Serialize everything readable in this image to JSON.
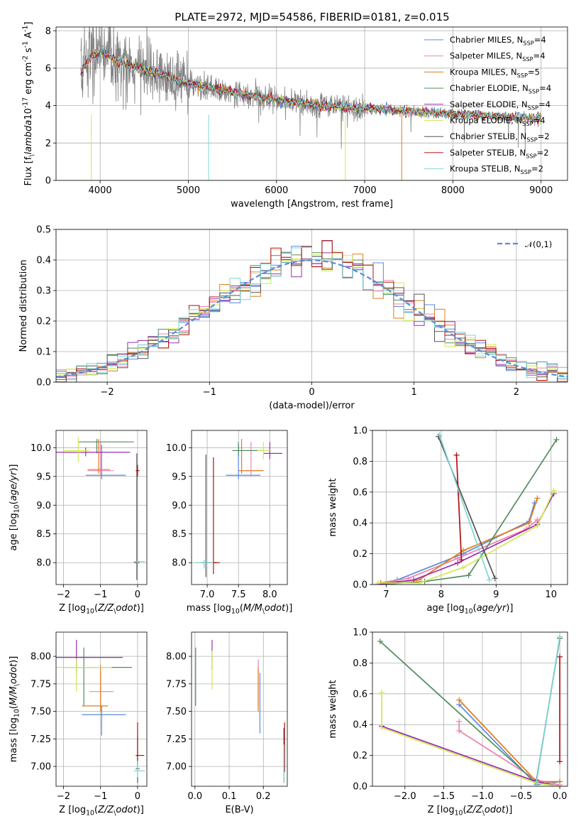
{
  "figure": {
    "title": "PLATE=2972, MJD=54586, FIBERID=0181, z=0.015",
    "series": [
      {
        "name": "Chabrier MILES, N$_{SSP}$=4",
        "color": "#5a8ae0"
      },
      {
        "name": "Salpeter MILES, N$_{SSP}$=4",
        "color": "#ee82b0"
      },
      {
        "name": "Kroupa MILES, N$_{SSP}$=5",
        "color": "#e07c1a"
      },
      {
        "name": "Chabrier ELODIE, N$_{SSP}$=4",
        "color": "#548c5e"
      },
      {
        "name": "Salpeter ELODIE, N$_{SSP}$=4",
        "color": "#9a2eb0"
      },
      {
        "name": "Kroupa ELODIE, N$_{SSP}$=4",
        "color": "#d0ea50"
      },
      {
        "name": "Chabrier STELIB, N$_{SSP}$=2",
        "color": "#555555"
      },
      {
        "name": "Salpeter STELIB, N$_{SSP}$=2",
        "color": "#b01010"
      },
      {
        "name": "Kroupa STELIB, N$_{SSP}$=2",
        "color": "#7ed6d6"
      }
    ],
    "observed_color": "#808080"
  },
  "chart_data": [
    {
      "id": "spectrum",
      "type": "line",
      "xlabel": "wavelength [Angstrom, rest frame]",
      "ylabel": "Flux [f$_\\lambda$10$^{-17}$ erg cm$^{-2}$ s$^{-1}$ A$^{-1}$]",
      "xlim": [
        3500,
        9300
      ],
      "ylim": [
        0,
        8.2
      ],
      "xticks": [
        4000,
        5000,
        6000,
        7000,
        8000,
        9000
      ],
      "yticks": [
        0,
        2,
        4,
        6,
        8
      ],
      "legend": "upper right",
      "continuum": {
        "x": [
          3780,
          3900,
          4000,
          4200,
          4500,
          5000,
          5500,
          6000,
          6500,
          7000,
          7500,
          8000,
          8500,
          9000
        ],
        "y": [
          5.8,
          6.6,
          6.9,
          6.4,
          5.9,
          5.2,
          4.7,
          4.3,
          4.0,
          3.85,
          3.7,
          3.55,
          3.42,
          3.3
        ]
      },
      "observed_noise": 0.35,
      "model_dropouts": [
        [
          3900,
          0
        ],
        [
          5230,
          0
        ],
        [
          6780,
          0
        ],
        [
          7420,
          0
        ]
      ]
    },
    {
      "id": "residuals",
      "type": "line",
      "xlabel": "(data-model)/error",
      "ylabel": "Normed distribution",
      "xlim": [
        -2.5,
        2.5
      ],
      "ylim": [
        0,
        0.5
      ],
      "xticks": [
        -2,
        -1,
        0,
        1,
        2
      ],
      "yticks": [
        0.0,
        0.1,
        0.2,
        0.3,
        0.4,
        0.5
      ],
      "legend_label": "$\\mathcal{N}(0,1)$",
      "legend": "upper right",
      "bin_width": 0.1,
      "histogram_scatter": 0.035
    },
    {
      "id": "z_age",
      "type": "scatter",
      "xlabel": "Z [log$_{10}$($Z/Z_\\odot$)]",
      "ylabel": "age  [log$_{10}$($age/yr$)]",
      "xlim": [
        -2.2,
        0.25
      ],
      "ylim": [
        7.62,
        10.3
      ],
      "xticks": [
        -2,
        -1,
        0
      ],
      "yticks": [
        8.0,
        8.5,
        9.0,
        9.5,
        10.0
      ],
      "points": [
        {
          "s": 0,
          "x": -0.97,
          "y": 9.52,
          "ex": [
            -1.4,
            -0.32
          ],
          "ey": [
            9.45,
            10.05
          ]
        },
        {
          "s": 1,
          "x": -1.0,
          "y": 9.6,
          "ex": [
            -1.35,
            -0.65
          ],
          "ey": [
            9.5,
            10.1
          ]
        },
        {
          "s": 2,
          "x": -1.05,
          "y": 9.62,
          "ex": [
            -1.35,
            -0.75
          ],
          "ey": [
            9.55,
            10.15
          ]
        },
        {
          "s": 3,
          "x": -1.1,
          "y": 10.1,
          "ex": [
            -1.6,
            -0.1
          ],
          "ey": [
            9.9,
            10.15
          ]
        },
        {
          "s": 4,
          "x": -1.4,
          "y": 9.92,
          "ex": [
            -2.3,
            -0.2
          ],
          "ey": [
            9.85,
            10.0
          ]
        },
        {
          "s": 5,
          "x": -1.6,
          "y": 9.95,
          "ex": [
            -2.0,
            -1.3
          ],
          "ey": [
            9.75,
            10.18
          ]
        },
        {
          "s": 6,
          "x": -0.02,
          "y": 8.0,
          "ex": [
            -0.1,
            0.05
          ],
          "ey": [
            7.7,
            9.9
          ]
        },
        {
          "s": 7,
          "x": 0.0,
          "y": 9.6,
          "ex": [
            -0.05,
            0.05
          ],
          "ey": [
            9.5,
            9.7
          ]
        },
        {
          "s": 8,
          "x": 0.0,
          "y": 8.02,
          "ex": [
            -0.1,
            0.2
          ],
          "ey": [
            7.97,
            8.05
          ]
        }
      ]
    },
    {
      "id": "mass_age",
      "type": "scatter",
      "xlabel": "mass [log$_{10}$($M/M_\\odot$)]",
      "ylabel": "",
      "xlim": [
        6.75,
        8.28
      ],
      "ylim": [
        7.62,
        10.3
      ],
      "xticks": [
        7.0,
        7.5,
        8.0
      ],
      "yticks": [
        8.0,
        8.5,
        9.0,
        9.5,
        10.0
      ],
      "points": [
        {
          "s": 0,
          "x": 7.5,
          "y": 9.52,
          "ex": [
            7.3,
            7.85
          ],
          "ey": [
            9.45,
            10.05
          ]
        },
        {
          "s": 1,
          "x": 7.7,
          "y": 9.6,
          "ex": [
            7.5,
            7.9
          ],
          "ey": [
            9.5,
            10.1
          ]
        },
        {
          "s": 2,
          "x": 7.55,
          "y": 9.6,
          "ex": [
            7.5,
            7.9
          ],
          "ey": [
            9.55,
            10.15
          ]
        },
        {
          "s": 3,
          "x": 7.5,
          "y": 9.95,
          "ex": [
            7.4,
            7.9
          ],
          "ey": [
            9.85,
            10.1
          ]
        },
        {
          "s": 4,
          "x": 8.0,
          "y": 9.9,
          "ex": [
            7.9,
            8.2
          ],
          "ey": [
            9.8,
            10.1
          ]
        },
        {
          "s": 5,
          "x": 7.9,
          "y": 9.95,
          "ex": [
            7.8,
            8.0
          ],
          "ey": [
            9.8,
            10.1
          ]
        },
        {
          "s": 6,
          "x": 6.98,
          "y": 8.0,
          "ex": [
            6.9,
            7.15
          ],
          "ey": [
            7.75,
            9.88
          ]
        },
        {
          "s": 7,
          "x": 7.1,
          "y": 8.0,
          "ex": [
            7.0,
            7.2
          ],
          "ey": [
            7.8,
            9.83
          ]
        },
        {
          "s": 8,
          "x": 6.95,
          "y": 8.0,
          "ex": [
            6.8,
            7.1
          ],
          "ey": [
            7.9,
            8.05
          ]
        }
      ]
    },
    {
      "id": "age_weight",
      "type": "line",
      "xlabel": "age  [log$_{10}$($age/yr$)]",
      "ylabel": "mass weight",
      "xlim": [
        6.75,
        10.3
      ],
      "ylim": [
        0,
        1.0
      ],
      "xticks": [
        7,
        8,
        9,
        10
      ],
      "yticks": [
        0.0,
        0.2,
        0.4,
        0.6,
        0.8,
        1.0
      ],
      "lines": [
        {
          "s": 0,
          "x": [
            6.9,
            7.2,
            8.4,
            9.6,
            9.7
          ],
          "y": [
            0.01,
            0.03,
            0.2,
            0.41,
            0.53
          ]
        },
        {
          "s": 1,
          "x": [
            6.9,
            7.4,
            8.3,
            9.55,
            9.75
          ],
          "y": [
            0.01,
            0.04,
            0.17,
            0.36,
            0.42
          ]
        },
        {
          "s": 2,
          "x": [
            6.9,
            7.6,
            8.4,
            9.6,
            9.75
          ],
          "y": [
            0.01,
            0.03,
            0.22,
            0.4,
            0.56
          ]
        },
        {
          "s": 3,
          "x": [
            6.85,
            7.7,
            8.5,
            10.1
          ],
          "y": [
            0.0,
            0.02,
            0.06,
            0.94
          ]
        },
        {
          "s": 4,
          "x": [
            6.85,
            7.5,
            8.3,
            9.75,
            10.05
          ],
          "y": [
            0.0,
            0.03,
            0.14,
            0.39,
            0.59
          ]
        },
        {
          "s": 5,
          "x": [
            6.85,
            7.6,
            8.4,
            9.75,
            10.05
          ],
          "y": [
            0.01,
            0.01,
            0.11,
            0.38,
            0.61
          ]
        },
        {
          "s": 6,
          "x": [
            7.95,
            8.98
          ],
          "y": [
            0.96,
            0.04
          ]
        },
        {
          "s": 7,
          "x": [
            8.28,
            8.37
          ],
          "y": [
            0.84,
            0.16
          ]
        },
        {
          "s": 8,
          "x": [
            7.97,
            8.88
          ],
          "y": [
            0.97,
            0.03
          ]
        }
      ]
    },
    {
      "id": "z_mass",
      "type": "scatter",
      "xlabel": "Z [log$_{10}$($Z/Z_\\odot$)]",
      "ylabel": "mass [log$_{10}$($M/M_\\odot$)]",
      "xlim": [
        -2.2,
        0.25
      ],
      "ylim": [
        6.82,
        8.22
      ],
      "xticks": [
        -2,
        -1,
        0
      ],
      "yticks": [
        7.0,
        7.25,
        7.5,
        7.75,
        8.0
      ],
      "points": [
        {
          "s": 0,
          "x": -0.97,
          "y": 7.47,
          "ex": [
            -1.5,
            -0.32
          ],
          "ey": [
            7.28,
            7.55
          ]
        },
        {
          "s": 1,
          "x": -1.0,
          "y": 7.68,
          "ex": [
            -1.3,
            -0.65
          ],
          "ey": [
            7.55,
            7.85
          ]
        },
        {
          "s": 2,
          "x": -1.0,
          "y": 7.55,
          "ex": [
            -1.5,
            -0.8
          ],
          "ey": [
            7.5,
            7.92
          ]
        },
        {
          "s": 3,
          "x": -1.45,
          "y": 7.9,
          "ex": [
            -2.0,
            -0.15
          ],
          "ey": [
            7.55,
            8.08
          ]
        },
        {
          "s": 4,
          "x": -1.65,
          "y": 7.99,
          "ex": [
            -2.2,
            -0.4
          ],
          "ey": [
            7.85,
            8.15
          ]
        },
        {
          "s": 5,
          "x": -1.65,
          "y": 7.9,
          "ex": [
            -2.2,
            -0.7
          ],
          "ey": [
            7.68,
            7.98
          ]
        },
        {
          "s": 6,
          "x": 0.0,
          "y": 6.98,
          "ex": [
            -0.05,
            0.05
          ],
          "ey": [
            6.85,
            7.27
          ]
        },
        {
          "s": 7,
          "x": 0.0,
          "y": 7.1,
          "ex": [
            -0.05,
            0.18
          ],
          "ey": [
            7.0,
            7.4
          ]
        },
        {
          "s": 8,
          "x": 0.0,
          "y": 6.96,
          "ex": [
            -0.1,
            0.2
          ],
          "ey": [
            6.9,
            7.05
          ]
        }
      ]
    },
    {
      "id": "ebv_mass",
      "type": "scatter",
      "xlabel": "E(B-V)",
      "ylabel": "",
      "xlim": [
        -0.01,
        0.27
      ],
      "ylim": [
        6.82,
        8.22
      ],
      "xticks": [
        0.0,
        0.1,
        0.2
      ],
      "yticks": [
        7.0,
        7.25,
        7.5,
        7.75,
        8.0
      ],
      "points": [
        {
          "s": 0,
          "x": 0.19,
          "y": 7.6,
          "ey": [
            7.3,
            7.85
          ]
        },
        {
          "s": 1,
          "x": 0.185,
          "y": 7.7,
          "ey": [
            7.55,
            7.97
          ]
        },
        {
          "s": 2,
          "x": 0.185,
          "y": 7.65,
          "ey": [
            7.5,
            7.9
          ]
        },
        {
          "s": 3,
          "x": 0.002,
          "y": 7.75,
          "ey": [
            7.55,
            8.08
          ]
        },
        {
          "s": 4,
          "x": 0.05,
          "y": 8.0,
          "ey": [
            7.88,
            8.15
          ]
        },
        {
          "s": 5,
          "x": 0.05,
          "y": 7.9,
          "ey": [
            7.7,
            8.05
          ]
        },
        {
          "s": 6,
          "x": 0.26,
          "y": 7.05,
          "ey": [
            6.85,
            7.35
          ]
        },
        {
          "s": 7,
          "x": 0.262,
          "y": 7.1,
          "ey": [
            6.95,
            7.4
          ]
        },
        {
          "s": 8,
          "x": 0.26,
          "y": 6.95,
          "ey": [
            6.85,
            7.2
          ]
        }
      ]
    },
    {
      "id": "z_weight",
      "type": "line",
      "xlabel": "Z [log$_{10}$($Z/Z_\\odot$)]",
      "ylabel": "mass weight",
      "xlim": [
        -2.42,
        0.1
      ],
      "ylim": [
        0,
        1.0
      ],
      "xticks": [
        -2.0,
        -1.5,
        -1.0,
        -0.5,
        0.0
      ],
      "yticks": [
        0.0,
        0.2,
        0.4,
        0.6,
        0.8,
        1.0
      ],
      "lines": [
        {
          "s": 0,
          "x": [
            -1.3,
            -0.3,
            0.0
          ],
          "y": [
            0.53,
            0.01,
            0.03
          ]
        },
        {
          "s": 1,
          "x": [
            -1.3,
            -1.3,
            -0.3,
            0.0
          ],
          "y": [
            0.42,
            0.36,
            0.04,
            0.01
          ]
        },
        {
          "s": 2,
          "x": [
            -1.3,
            -0.3,
            0.0
          ],
          "y": [
            0.56,
            0.03,
            0.03
          ]
        },
        {
          "s": 3,
          "x": [
            -2.32,
            -0.3,
            0.0
          ],
          "y": [
            0.94,
            0.02,
            0.0
          ]
        },
        {
          "s": 4,
          "x": [
            -2.3,
            -0.3,
            0.0
          ],
          "y": [
            0.39,
            0.03,
            0.0
          ]
        },
        {
          "s": 5,
          "x": [
            -2.3,
            -2.3,
            -0.3,
            0.0
          ],
          "y": [
            0.61,
            0.38,
            0.02,
            0.0
          ]
        },
        {
          "s": 6,
          "x": [
            -0.3,
            0.0
          ],
          "y": [
            0.04,
            0.96
          ]
        },
        {
          "s": 7,
          "x": [
            0.0,
            0.0
          ],
          "y": [
            0.84,
            0.16
          ]
        },
        {
          "s": 8,
          "x": [
            -0.3,
            0.0
          ],
          "y": [
            0.03,
            0.97
          ]
        }
      ]
    }
  ]
}
